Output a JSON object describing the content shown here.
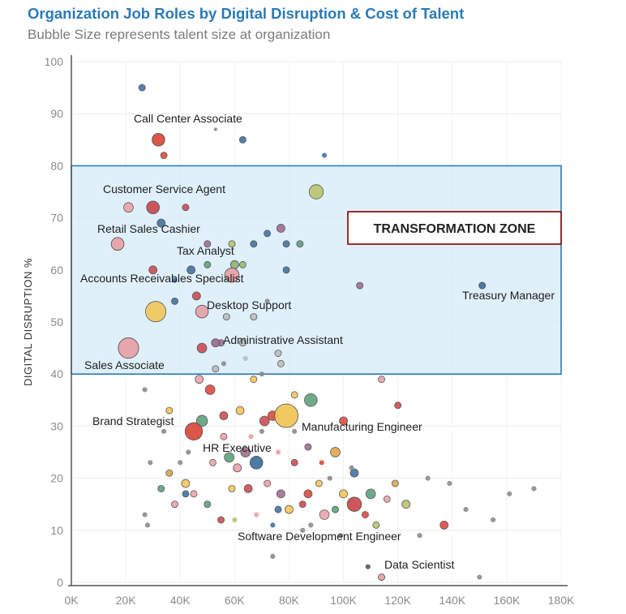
{
  "chart_data": {
    "type": "scatter",
    "title": "Organization Job Roles by Digital Disruption & Cost of Talent",
    "subtitle": "Bubble Size represents talent size at organization",
    "xlabel": "",
    "ylabel": "DIGITAL DISRUPTION %",
    "xlim": [
      0,
      180000
    ],
    "ylim": [
      0,
      100
    ],
    "x_ticks": [
      "0K",
      "20K",
      "40K",
      "60K",
      "80K",
      "100K",
      "120K",
      "140K",
      "160K",
      "180K"
    ],
    "x_tick_values": [
      0,
      20000,
      40000,
      60000,
      80000,
      100000,
      120000,
      140000,
      160000,
      180000
    ],
    "y_ticks": [
      "0",
      "10",
      "20",
      "30",
      "40",
      "50",
      "60",
      "70",
      "80",
      "90",
      "100"
    ],
    "y_tick_values": [
      0,
      10,
      20,
      30,
      40,
      50,
      60,
      70,
      80,
      90,
      100
    ],
    "zone": {
      "label": "TRANSFORMATION ZONE",
      "x_range": [
        0,
        180000
      ],
      "y_range": [
        40,
        80
      ]
    },
    "labeled_points": [
      {
        "label": "Call Center Associate",
        "x": 32000,
        "y": 85,
        "size": 7,
        "color": "#d9473a"
      },
      {
        "label": "Customer Service Agent",
        "x": 30000,
        "y": 72,
        "size": 7,
        "color": "#c9484f"
      },
      {
        "label": "Retail Sales Cashier",
        "x": 17000,
        "y": 65,
        "size": 7,
        "color": "#e7a0a6"
      },
      {
        "label": "Tax Analyst",
        "x": 60000,
        "y": 61,
        "size": 4,
        "color": "#8fb66f"
      },
      {
        "label": "Accounts Receivables Specialist",
        "x": 59000,
        "y": 59,
        "size": 8,
        "color": "#e7a0a6"
      },
      {
        "label": "Desktop Support",
        "x": 48000,
        "y": 52,
        "size": 7,
        "color": "#e7a0a6"
      },
      {
        "label": "Treasury Manager",
        "x": 151000,
        "y": 57,
        "size": 3,
        "color": "#3e6e9e"
      },
      {
        "label": "Administrative Assistant",
        "x": 53000,
        "y": 46,
        "size": 4,
        "color": "#9c6b8c"
      },
      {
        "label": "Sales Associate",
        "x": 21000,
        "y": 45,
        "size": 12,
        "color": "#e7a0a6"
      },
      {
        "label": "Brand Strategist",
        "x": 45000,
        "y": 29,
        "size": 10,
        "color": "#d9473a"
      },
      {
        "label": "Manufacturing Engineer",
        "x": 79000,
        "y": 32,
        "size": 14,
        "color": "#f1c453"
      },
      {
        "label": "HR Executive",
        "x": 68000,
        "y": 23,
        "size": 7,
        "color": "#3e6e9e"
      },
      {
        "label": "Software Development Engineer",
        "x": 104000,
        "y": 15,
        "size": 8,
        "color": "#c9484f"
      },
      {
        "label": "Data Scientist",
        "x": 114000,
        "y": 1,
        "size": 3,
        "color": "#e7a0a6"
      }
    ],
    "other_points": [
      [
        26000,
        95,
        3,
        "#3e6e9e"
      ],
      [
        63000,
        85,
        3,
        "#3e6e9e"
      ],
      [
        93000,
        82,
        2,
        "#3e6e9e"
      ],
      [
        34000,
        82,
        3,
        "#d9473a"
      ],
      [
        53000,
        87,
        1,
        "#888888"
      ],
      [
        90000,
        75,
        8,
        "#b9c06a"
      ],
      [
        21000,
        72,
        5,
        "#e7a0a6"
      ],
      [
        42000,
        72,
        3,
        "#c9484f"
      ],
      [
        33000,
        69,
        4,
        "#3e6e9e"
      ],
      [
        77000,
        68,
        4,
        "#9c6b8c"
      ],
      [
        72000,
        67,
        3,
        "#3e6e9e"
      ],
      [
        50000,
        65,
        3,
        "#9c6b8c"
      ],
      [
        59000,
        65,
        3,
        "#b9c06a"
      ],
      [
        67000,
        65,
        3,
        "#3e6e9e"
      ],
      [
        79000,
        65,
        3,
        "#3e6e9e"
      ],
      [
        84000,
        65,
        3,
        "#5a9e78"
      ],
      [
        50000,
        61,
        3,
        "#5a9e78"
      ],
      [
        63000,
        61,
        3,
        "#8fb66f"
      ],
      [
        30000,
        60,
        4,
        "#c9484f"
      ],
      [
        44000,
        60,
        4,
        "#3e6e9e"
      ],
      [
        79000,
        60,
        3,
        "#3e6e9e"
      ],
      [
        38000,
        58,
        2,
        "#3e6e9e"
      ],
      [
        46000,
        55,
        4,
        "#c9484f"
      ],
      [
        106000,
        57,
        3,
        "#9c6b8c"
      ],
      [
        31000,
        52,
        12,
        "#f1c453"
      ],
      [
        38000,
        54,
        3,
        "#3e6e9e"
      ],
      [
        57000,
        51,
        3,
        "#bbbbbb"
      ],
      [
        67000,
        51,
        3,
        "#bbbbbb"
      ],
      [
        72000,
        54,
        2,
        "#888888"
      ],
      [
        48000,
        45,
        5,
        "#c9484f"
      ],
      [
        55000,
        46,
        3,
        "#9c6b8c"
      ],
      [
        63000,
        46,
        3,
        "#bbbbbb"
      ],
      [
        76000,
        44,
        3,
        "#bbbbbb"
      ],
      [
        77000,
        42,
        3,
        "#bbbbbb"
      ],
      [
        53000,
        41,
        3,
        "#bbbbbb"
      ],
      [
        64000,
        43,
        2,
        "#bbbbbb"
      ],
      [
        70000,
        40,
        2,
        "#888888"
      ],
      [
        56000,
        42,
        2,
        "#888888"
      ],
      [
        88000,
        35,
        7,
        "#5a9e78"
      ],
      [
        51000,
        37,
        5,
        "#d9473a"
      ],
      [
        48000,
        31,
        6,
        "#5a9e78"
      ],
      [
        56000,
        32,
        4,
        "#c9484f"
      ],
      [
        62000,
        33,
        4,
        "#f1c453"
      ],
      [
        74000,
        32,
        5,
        "#d9473a"
      ],
      [
        71000,
        31,
        5,
        "#c9484f"
      ],
      [
        100000,
        31,
        4,
        "#d9473a"
      ],
      [
        36000,
        33,
        3,
        "#f1c453"
      ],
      [
        47000,
        39,
        4,
        "#e7a0a6"
      ],
      [
        67000,
        39,
        3,
        "#f1c453"
      ],
      [
        114000,
        39,
        3,
        "#e7a0a6"
      ],
      [
        120000,
        34,
        3,
        "#c9484f"
      ],
      [
        82000,
        36,
        3,
        "#f1c453"
      ],
      [
        97000,
        25,
        5,
        "#d9a44a"
      ],
      [
        64000,
        25,
        5,
        "#9c6b8c"
      ],
      [
        58000,
        24,
        5,
        "#5a9e78"
      ],
      [
        61000,
        22,
        4,
        "#e7a0a6"
      ],
      [
        82000,
        23,
        3,
        "#c9484f"
      ],
      [
        104000,
        21,
        4,
        "#3e6e9e"
      ],
      [
        110000,
        17,
        5,
        "#5a9e78"
      ],
      [
        123000,
        15,
        4,
        "#b9c06a"
      ],
      [
        137000,
        11,
        4,
        "#d9473a"
      ],
      [
        36000,
        21,
        3,
        "#d9a44a"
      ],
      [
        42000,
        19,
        4,
        "#f1c453"
      ],
      [
        45000,
        17,
        3,
        "#e7a0a6"
      ],
      [
        42000,
        17,
        3,
        "#3e6e9e"
      ],
      [
        33000,
        18,
        3,
        "#5a9e78"
      ],
      [
        38000,
        15,
        3,
        "#e7a0a6"
      ],
      [
        50000,
        15,
        3,
        "#5a9e78"
      ],
      [
        55000,
        12,
        3,
        "#c9484f"
      ],
      [
        59000,
        18,
        3,
        "#f1c453"
      ],
      [
        65000,
        18,
        4,
        "#c9484f"
      ],
      [
        72000,
        19,
        3,
        "#e7a0a6"
      ],
      [
        77000,
        17,
        4,
        "#9c6b8c"
      ],
      [
        76000,
        14,
        3,
        "#3e6e9e"
      ],
      [
        80000,
        14,
        4,
        "#f1c453"
      ],
      [
        85000,
        15,
        3,
        "#c9484f"
      ],
      [
        87000,
        17,
        4,
        "#d9473a"
      ],
      [
        91000,
        19,
        3,
        "#f1c453"
      ],
      [
        93000,
        13,
        5,
        "#e7a0a6"
      ],
      [
        97000,
        14,
        3,
        "#5a9e78"
      ],
      [
        100000,
        17,
        4,
        "#f1c453"
      ],
      [
        108000,
        13,
        3,
        "#d9473a"
      ],
      [
        112000,
        11,
        3,
        "#b9c06a"
      ],
      [
        116000,
        16,
        3,
        "#e7a0a6"
      ],
      [
        119000,
        19,
        3,
        "#d9a44a"
      ],
      [
        56000,
        28,
        3,
        "#e7a0a6"
      ],
      [
        52000,
        23,
        3,
        "#e7a0a6"
      ],
      [
        66000,
        28,
        2,
        "#e7a0a6"
      ],
      [
        76000,
        25,
        2,
        "#e7a0a6"
      ],
      [
        87000,
        26,
        3,
        "#9c6b8c"
      ],
      [
        92000,
        23,
        2,
        "#d9473a"
      ],
      [
        68000,
        13,
        2,
        "#e7a0a6"
      ],
      [
        60000,
        12,
        2,
        "#b9c06a"
      ],
      [
        74000,
        11,
        2,
        "#3e6e9e"
      ],
      [
        85000,
        10,
        2,
        "#888888"
      ],
      [
        99000,
        9,
        2,
        "#888888"
      ],
      [
        128000,
        9,
        2,
        "#888888"
      ],
      [
        145000,
        14,
        2,
        "#888888"
      ],
      [
        155000,
        12,
        2,
        "#888888"
      ],
      [
        161000,
        17,
        2,
        "#888888"
      ],
      [
        170000,
        18,
        2,
        "#888888"
      ],
      [
        150000,
        1,
        2,
        "#888888"
      ],
      [
        109000,
        3,
        2,
        "#555555"
      ],
      [
        74000,
        5,
        2,
        "#888888"
      ],
      [
        28000,
        11,
        2,
        "#888888"
      ],
      [
        27000,
        13,
        2,
        "#888888"
      ],
      [
        29000,
        23,
        2,
        "#888888"
      ],
      [
        27000,
        37,
        2,
        "#888888"
      ],
      [
        34000,
        29,
        2,
        "#888888"
      ],
      [
        40000,
        23,
        2,
        "#888888"
      ],
      [
        43000,
        25,
        2,
        "#888888"
      ],
      [
        88000,
        11,
        2,
        "#888888"
      ],
      [
        95000,
        20,
        2,
        "#888888"
      ],
      [
        131000,
        20,
        2,
        "#888888"
      ],
      [
        139000,
        19,
        2,
        "#888888"
      ],
      [
        103000,
        22,
        2,
        "#888888"
      ],
      [
        82000,
        29,
        2,
        "#888888"
      ],
      [
        70000,
        29,
        2,
        "#888888"
      ]
    ]
  }
}
